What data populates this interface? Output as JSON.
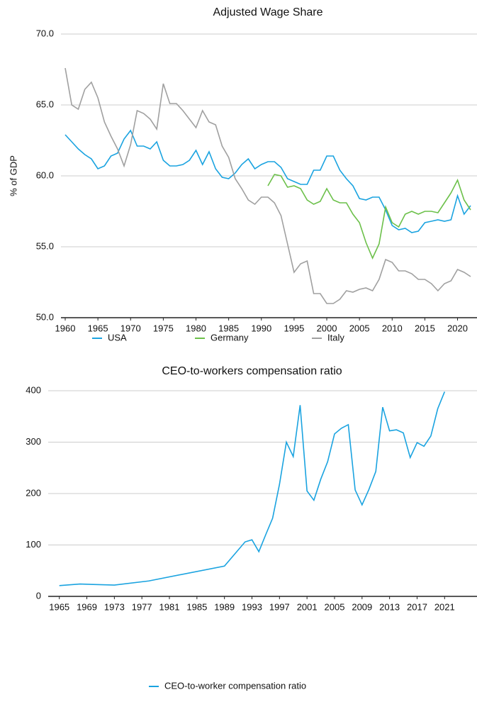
{
  "chart_data": [
    {
      "type": "line",
      "title": "Adjusted Wage Share",
      "y_label": "% of GDP",
      "x": [
        1960,
        1961,
        1962,
        1963,
        1964,
        1965,
        1966,
        1967,
        1968,
        1969,
        1970,
        1971,
        1972,
        1973,
        1974,
        1975,
        1976,
        1977,
        1978,
        1979,
        1980,
        1981,
        1982,
        1983,
        1984,
        1985,
        1986,
        1987,
        1988,
        1989,
        1990,
        1991,
        1992,
        1993,
        1994,
        1995,
        1996,
        1997,
        1998,
        1999,
        2000,
        2001,
        2002,
        2003,
        2004,
        2005,
        2006,
        2007,
        2008,
        2009,
        2010,
        2011,
        2012,
        2013,
        2014,
        2015,
        2016,
        2017,
        2018,
        2019,
        2020,
        2021,
        2022
      ],
      "series": [
        {
          "name": "USA",
          "color": "#1aa3e0",
          "values": [
            62.9,
            62.4,
            61.9,
            61.5,
            61.2,
            60.5,
            60.7,
            61.4,
            61.6,
            62.6,
            63.2,
            62.1,
            62.1,
            61.9,
            62.4,
            61.1,
            60.7,
            60.7,
            60.8,
            61.1,
            61.8,
            60.8,
            61.7,
            60.5,
            59.9,
            59.8,
            60.2,
            60.8,
            61.2,
            60.5,
            60.8,
            61.0,
            61.0,
            60.6,
            59.8,
            59.6,
            59.4,
            59.4,
            60.4,
            60.4,
            61.4,
            61.4,
            60.4,
            59.8,
            59.3,
            58.4,
            58.3,
            58.5,
            58.5,
            57.6,
            56.5,
            56.2,
            56.3,
            56.0,
            56.1,
            56.7,
            56.8,
            56.9,
            56.8,
            56.9,
            58.6,
            57.3,
            57.9
          ]
        },
        {
          "name": "Germany",
          "color": "#6cc04a",
          "values": [
            null,
            null,
            null,
            null,
            null,
            null,
            null,
            null,
            null,
            null,
            null,
            null,
            null,
            null,
            null,
            null,
            null,
            null,
            null,
            null,
            null,
            null,
            null,
            null,
            null,
            null,
            null,
            null,
            null,
            null,
            null,
            59.3,
            60.1,
            60.0,
            59.2,
            59.3,
            59.1,
            58.3,
            58.0,
            58.2,
            59.1,
            58.3,
            58.1,
            58.1,
            57.3,
            56.7,
            55.3,
            54.2,
            55.2,
            57.8,
            56.7,
            56.4,
            57.3,
            57.5,
            57.3,
            57.5,
            57.5,
            57.4,
            58.1,
            58.8,
            59.7,
            58.3,
            57.6
          ]
        },
        {
          "name": "Italy",
          "color": "#a0a0a0",
          "values": [
            67.6,
            65.0,
            64.7,
            66.1,
            66.6,
            65.5,
            63.8,
            62.8,
            61.9,
            60.7,
            62.2,
            64.6,
            64.4,
            64.0,
            63.3,
            66.5,
            65.1,
            65.1,
            64.6,
            64.0,
            63.4,
            64.6,
            63.8,
            63.6,
            62.1,
            61.3,
            59.8,
            59.1,
            58.3,
            58.0,
            58.5,
            58.5,
            58.1,
            57.2,
            55.2,
            53.2,
            53.8,
            54.0,
            51.7,
            51.7,
            51.0,
            51.0,
            51.3,
            51.9,
            51.8,
            52.0,
            52.1,
            51.9,
            52.7,
            54.1,
            53.9,
            53.3,
            53.3,
            53.1,
            52.7,
            52.7,
            52.4,
            51.9,
            52.4,
            52.6,
            53.4,
            53.2,
            52.9
          ]
        }
      ],
      "xlim": [
        1960,
        2022
      ],
      "xticks": [
        1960,
        1965,
        1970,
        1975,
        1980,
        1985,
        1990,
        1995,
        2000,
        2005,
        2010,
        2015,
        2020
      ],
      "ylim": [
        50,
        70
      ],
      "yticks": [
        {
          "value": 50,
          "label": "50.0"
        },
        {
          "value": 55,
          "label": "55.0"
        },
        {
          "value": 60,
          "label": "60.0"
        },
        {
          "value": 65,
          "label": "65.0"
        },
        {
          "value": 70,
          "label": "70.0"
        }
      ],
      "grid": true
    },
    {
      "type": "line",
      "title": "CEO-to-workers compensation ratio",
      "x": [
        1965,
        1968,
        1973,
        1978,
        1989,
        1992,
        1993,
        1994,
        1995,
        1996,
        1997,
        1998,
        1999,
        2000,
        2001,
        2002,
        2003,
        2004,
        2005,
        2006,
        2007,
        2008,
        2009,
        2010,
        2011,
        2012,
        2013,
        2014,
        2015,
        2016,
        2017,
        2018,
        2019,
        2020,
        2021
      ],
      "series": [
        {
          "name": "CEO-to-worker compensation ratio",
          "color": "#1aa3e0",
          "values": [
            21,
            24,
            22,
            30,
            59,
            106,
            110,
            87,
            120,
            152,
            218,
            300,
            272,
            372,
            205,
            187,
            228,
            262,
            316,
            327,
            334,
            207,
            178,
            208,
            243,
            368,
            322,
            324,
            318,
            270,
            299,
            292,
            312,
            365,
            398
          ]
        }
      ],
      "xlim": [
        1964,
        2022
      ],
      "xticks": [
        1965,
        1969,
        1973,
        1977,
        1981,
        1985,
        1989,
        1993,
        1997,
        2001,
        2005,
        2009,
        2013,
        2017,
        2021
      ],
      "ylim": [
        0,
        400
      ],
      "yticks": [
        0,
        100,
        200,
        300,
        400
      ],
      "grid": true
    }
  ]
}
